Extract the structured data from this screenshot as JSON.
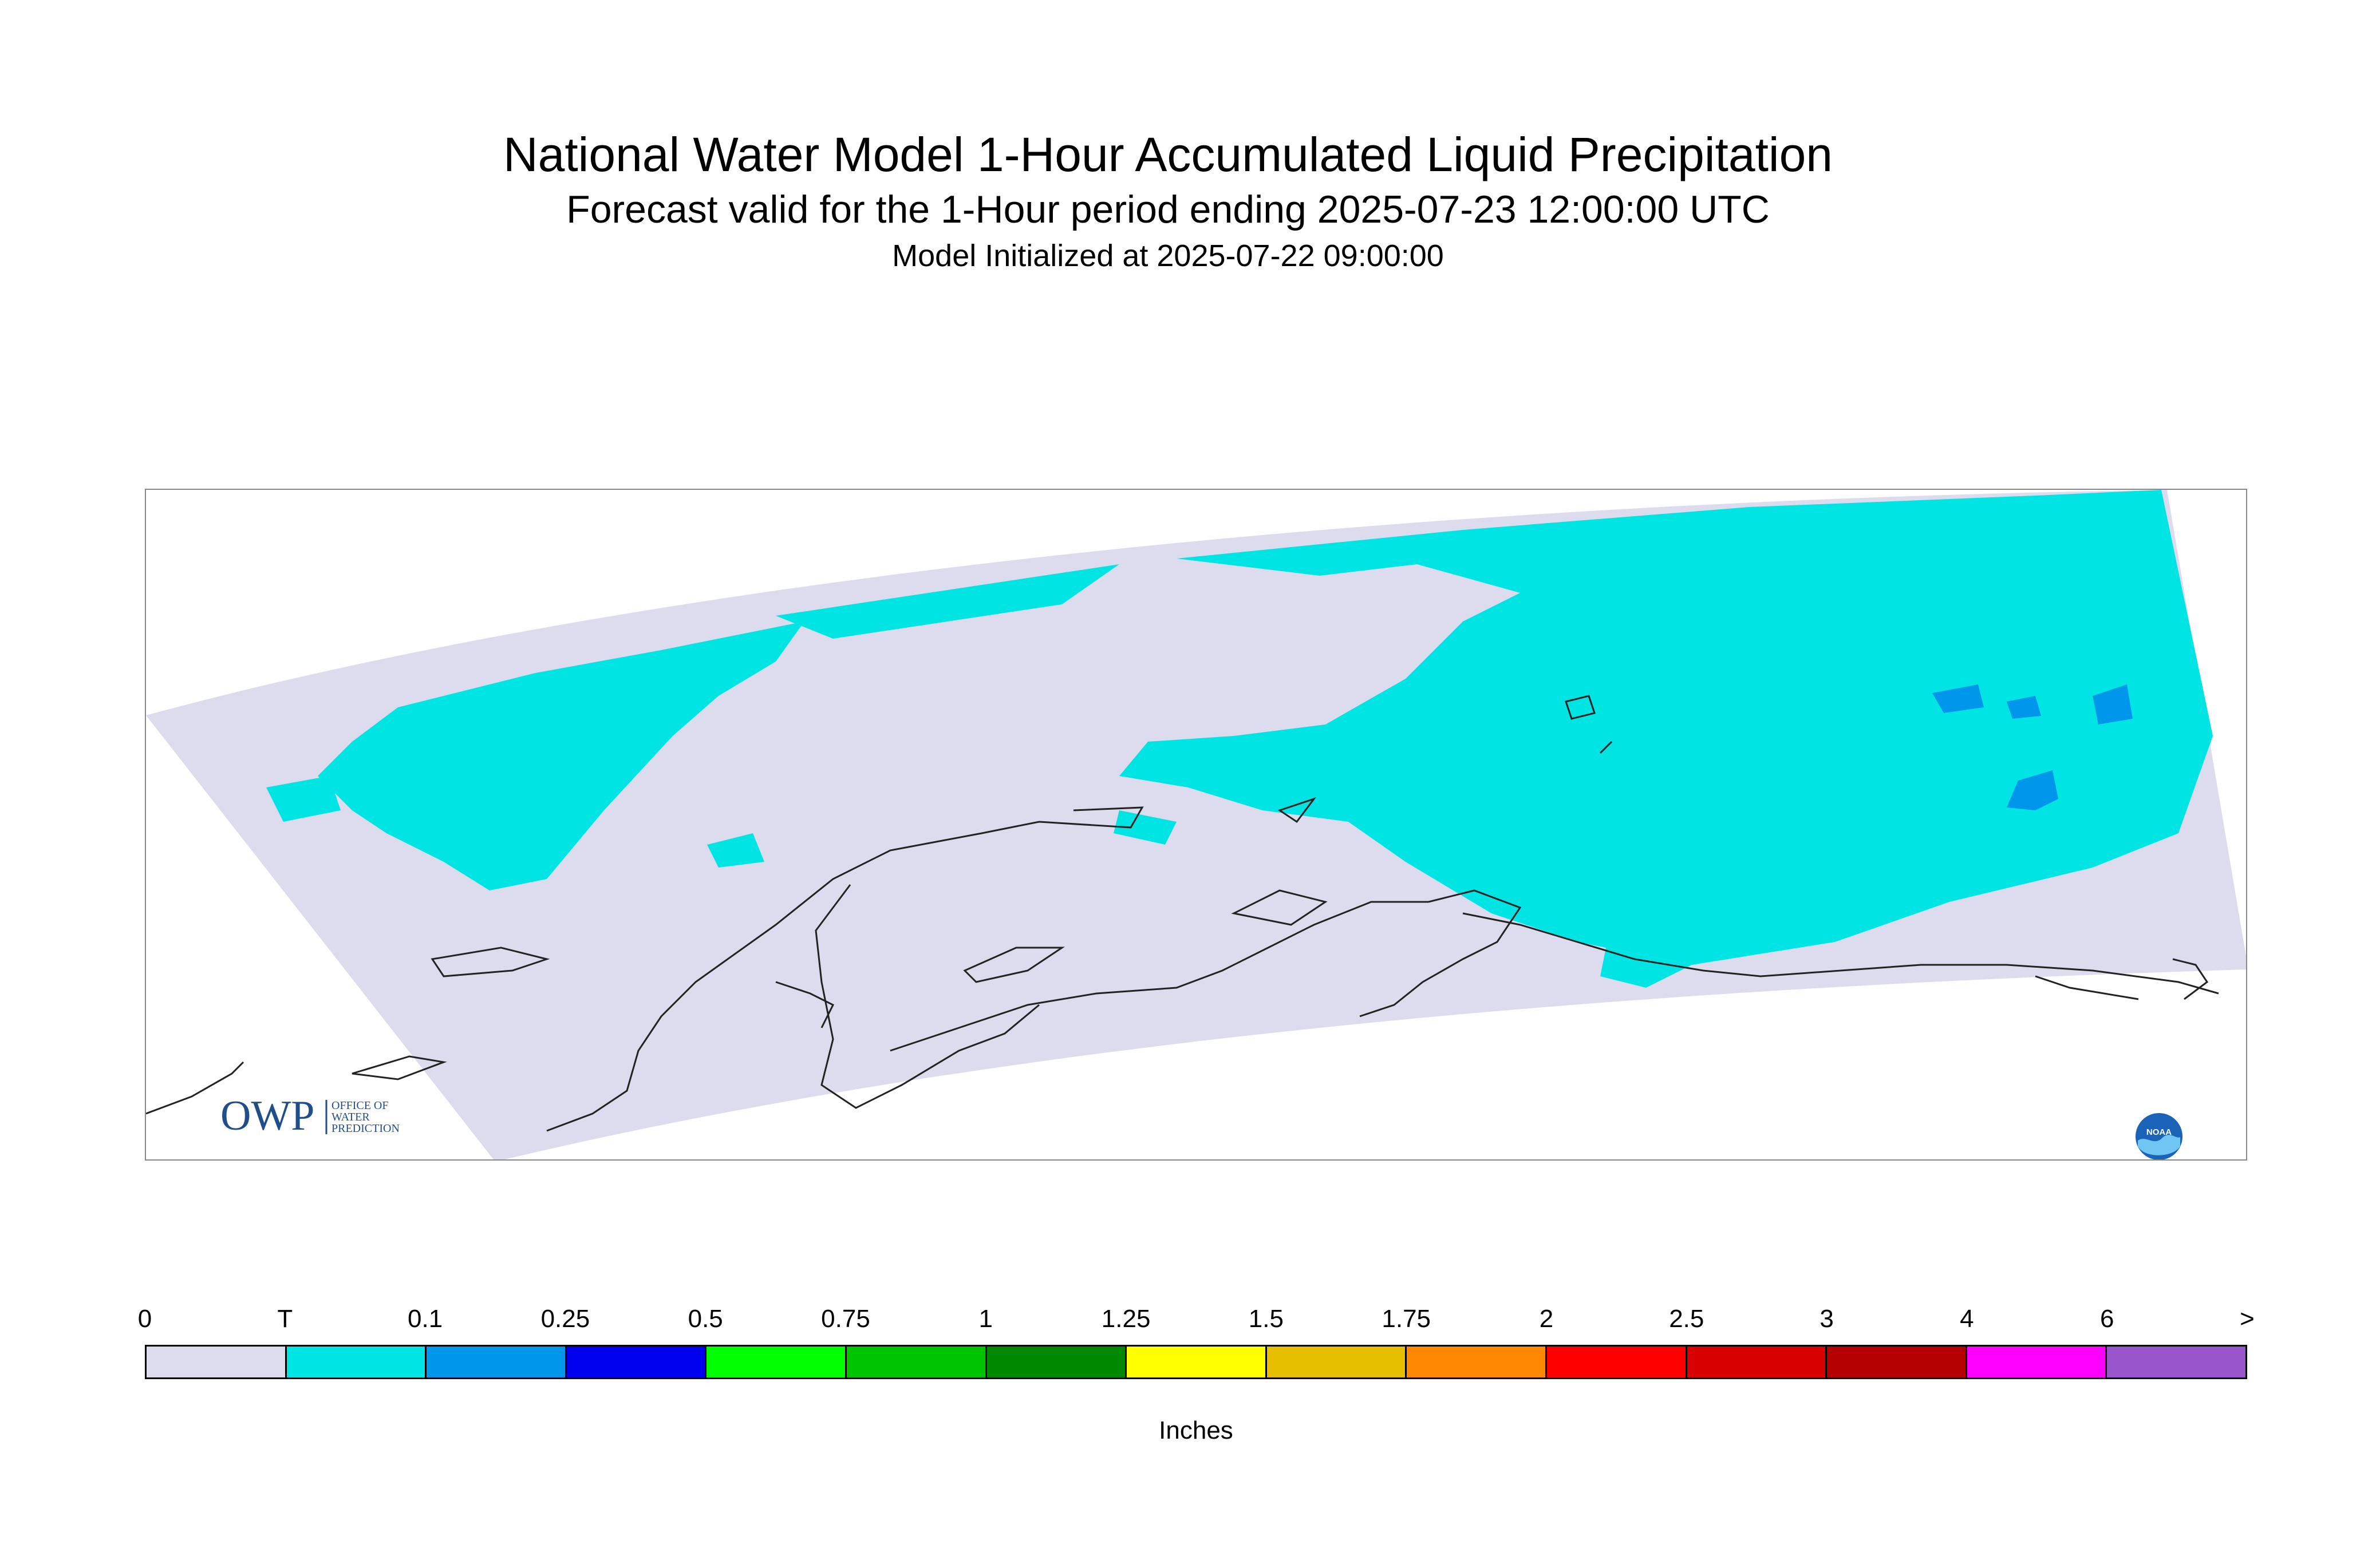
{
  "title": {
    "line1": "National Water Model 1-Hour Accumulated Liquid Precipitation",
    "line2": "Forecast valid for the 1-Hour period ending 2025-07-23 12:00:00 UTC",
    "line3": "Model Initialized at 2025-07-22 09:00:00"
  },
  "logos": {
    "owp_mark": "OWP",
    "owp_text": [
      "OFFICE OF",
      "WATER",
      "PREDICTION"
    ],
    "noaa_mark": "NOAA"
  },
  "legend": {
    "ticks": [
      "0",
      "T",
      "0.1",
      "0.25",
      "0.5",
      "0.75",
      "1",
      "1.25",
      "1.5",
      "1.75",
      "2",
      "2.5",
      "3",
      "4",
      "6",
      ">"
    ],
    "colors": [
      "#dcdcee",
      "#00e4e4",
      "#0096ec",
      "#0000ee",
      "#00ff00",
      "#00c400",
      "#008800",
      "#ffff00",
      "#e6c000",
      "#ff8800",
      "#ff0000",
      "#d80000",
      "#b40000",
      "#ff00ff",
      "#9955cc"
    ],
    "units": "Inches"
  },
  "map_colors": {
    "background": "#dcdcee",
    "trace": "#00e4e4",
    "light": "#0096ec",
    "coast": "#222222"
  }
}
